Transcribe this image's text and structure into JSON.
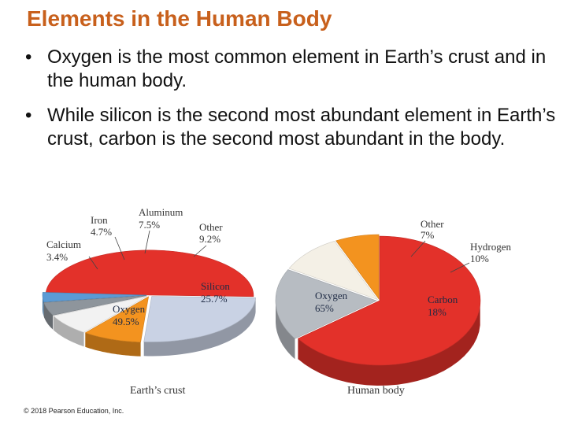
{
  "slide": {
    "title": "Elements in the Human Body",
    "bullets": [
      "Oxygen is the most common element in Earth’s crust and in the human body.",
      "While silicon is the second most abundant element in Earth’s crust, carbon is the second most abundant in the body."
    ],
    "copyright": "© 2018 Pearson Education, Inc."
  },
  "chart_data": [
    {
      "type": "pie",
      "title": "Earth’s crust",
      "slices": [
        {
          "name": "Oxygen",
          "label": "Oxygen",
          "pct_label": "49.5%",
          "value": 49.5,
          "color": "#e3312a"
        },
        {
          "name": "Silicon",
          "label": "Silicon",
          "pct_label": "25.7%",
          "value": 25.7,
          "color": "#c9d2e4"
        },
        {
          "name": "Other",
          "label": "Other",
          "pct_label": "9.2%",
          "value": 9.2,
          "color": "#f3931f"
        },
        {
          "name": "Aluminum",
          "label": "Aluminum",
          "pct_label": "7.5%",
          "value": 7.5,
          "color": "#f2f2f2"
        },
        {
          "name": "Iron",
          "label": "Iron",
          "pct_label": "4.7%",
          "value": 4.7,
          "color": "#8e959c"
        },
        {
          "name": "Calcium",
          "label": "Calcium",
          "pct_label": "3.4%",
          "value": 3.4,
          "color": "#5b9bd5"
        }
      ]
    },
    {
      "type": "pie",
      "title": "Human body",
      "slices": [
        {
          "name": "Oxygen",
          "label": "Oxygen",
          "pct_label": "65%",
          "value": 65,
          "color": "#e3312a"
        },
        {
          "name": "Carbon",
          "label": "Carbon",
          "pct_label": "18%",
          "value": 18,
          "color": "#b7bcc2"
        },
        {
          "name": "Hydrogen",
          "label": "Hydrogen",
          "pct_label": "10%",
          "value": 10,
          "color": "#f4f0e6"
        },
        {
          "name": "Other",
          "label": "Other",
          "pct_label": "7%",
          "value": 7,
          "color": "#f3931f"
        }
      ]
    }
  ]
}
